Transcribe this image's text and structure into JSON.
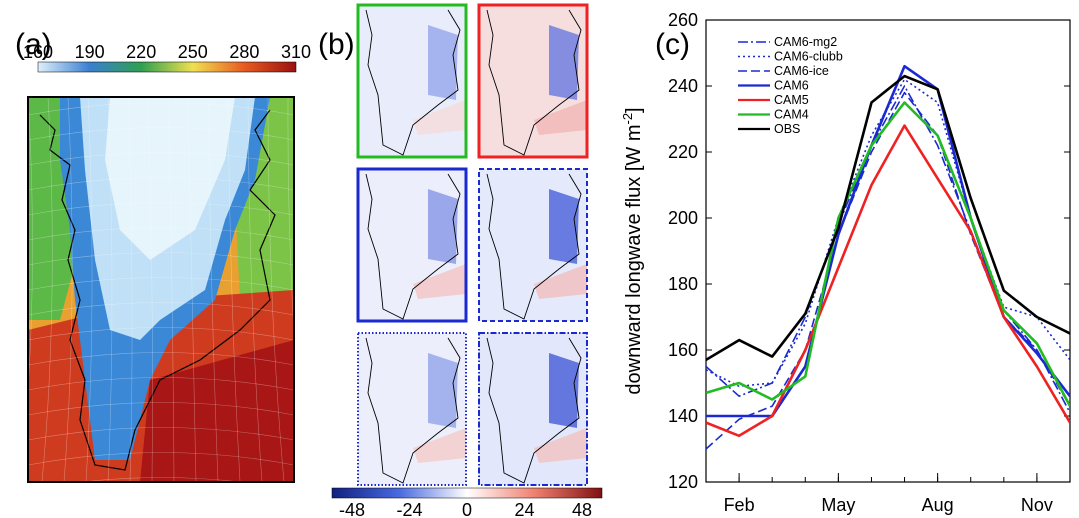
{
  "panel_labels": {
    "a": "(a)",
    "b": "(b)",
    "c": "(c)"
  },
  "colorbar_a": {
    "ticks": [
      "160",
      "190",
      "220",
      "250",
      "280",
      "310"
    ],
    "colors": [
      "#dff0fb",
      "#3a7fd0",
      "#2ea050",
      "#f0e050",
      "#e85a20",
      "#9a1010"
    ]
  },
  "colorbar_b": {
    "ticks": [
      "-48",
      "-24",
      "0",
      "24",
      "48"
    ],
    "colors": [
      "#102080",
      "#4a6ae0",
      "#ffffff",
      "#f08070",
      "#801010"
    ]
  },
  "difference_panels": [
    {
      "border_color": "#22bb22",
      "border_style": "solid"
    },
    {
      "border_color": "#ee2222",
      "border_style": "solid"
    },
    {
      "border_color": "#1a2ad0",
      "border_style": "solid"
    },
    {
      "border_color": "#1a2ad0",
      "border_style": "dashed"
    },
    {
      "border_color": "#1a2ad0",
      "border_style": "dotted"
    },
    {
      "border_color": "#1a2ad0",
      "border_style": "dashdot"
    }
  ],
  "chart_data": {
    "type": "line",
    "xlabel": "",
    "ylabel": "downward longwave flux [W m",
    "ylabel_sup": "-2",
    "ylabel_end": "]",
    "xlim": [
      1,
      12
    ],
    "ylim": [
      120,
      260
    ],
    "yticks": [
      120,
      140,
      160,
      180,
      200,
      220,
      240,
      260
    ],
    "x_tick_labels": [
      {
        "month": 2,
        "label": "Feb"
      },
      {
        "month": 5,
        "label": "May"
      },
      {
        "month": 8,
        "label": "Aug"
      },
      {
        "month": 11,
        "label": "Nov"
      }
    ],
    "x": [
      1,
      2,
      3,
      4,
      5,
      6,
      7,
      8,
      9,
      10,
      11,
      12
    ],
    "legend_position": "top-left",
    "series": [
      {
        "name": "CAM6-mg2",
        "color": "#1a2ad0",
        "dash": "10,3,2,3",
        "width": 1.6,
        "values": [
          155,
          146,
          150,
          170,
          198,
          222,
          240,
          222,
          196,
          172,
          160,
          141
        ]
      },
      {
        "name": "CAM6-clubb",
        "color": "#1a2ad0",
        "dash": "2,3",
        "width": 1.6,
        "values": [
          154,
          149,
          150,
          168,
          200,
          225,
          242,
          235,
          200,
          173,
          170,
          157
        ]
      },
      {
        "name": "CAM6-ice",
        "color": "#1a2ad0",
        "dash": "9,4",
        "width": 1.6,
        "values": [
          130,
          139,
          143,
          160,
          195,
          220,
          238,
          225,
          195,
          170,
          160,
          143
        ]
      },
      {
        "name": "CAM6",
        "color": "#1a2ad0",
        "dash": "",
        "width": 2.6,
        "values": [
          140,
          140,
          140,
          155,
          195,
          222,
          246,
          239,
          200,
          170,
          159,
          146
        ]
      },
      {
        "name": "CAM5",
        "color": "#ee2222",
        "dash": "",
        "width": 2.6,
        "values": [
          138,
          134,
          140,
          160,
          185,
          210,
          228,
          212,
          196,
          170,
          155,
          138
        ]
      },
      {
        "name": "CAM4",
        "color": "#22bb22",
        "dash": "",
        "width": 2.6,
        "values": [
          147,
          150,
          145,
          152,
          200,
          222,
          235,
          225,
          200,
          172,
          162,
          143
        ]
      },
      {
        "name": "OBS",
        "color": "#000000",
        "dash": "",
        "width": 2.6,
        "values": [
          157,
          163,
          158,
          171,
          197,
          235,
          243,
          239,
          206,
          178,
          170,
          165
        ]
      }
    ]
  }
}
